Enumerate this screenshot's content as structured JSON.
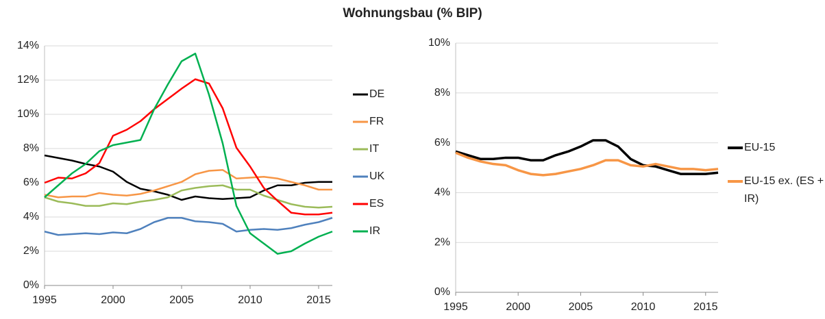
{
  "title": "Wohnungsbau (% BIP)",
  "chart_data": [
    {
      "type": "line",
      "x": [
        1995,
        1996,
        1997,
        1998,
        1999,
        2000,
        2001,
        2002,
        2003,
        2004,
        2005,
        2006,
        2007,
        2008,
        2009,
        2010,
        2011,
        2012,
        2013,
        2014,
        2015,
        2016
      ],
      "xlim": [
        1995,
        2016
      ],
      "xticks": [
        1995,
        2000,
        2005,
        2010,
        2015
      ],
      "ylim": [
        0,
        14
      ],
      "yticks": [
        {
          "value": 0,
          "label": "0%"
        },
        {
          "value": 2,
          "label": "2%"
        },
        {
          "value": 4,
          "label": "4%"
        },
        {
          "value": 6,
          "label": "6%"
        },
        {
          "value": 8,
          "label": "8%"
        },
        {
          "value": 10,
          "label": "10%"
        },
        {
          "value": 12,
          "label": "12%"
        },
        {
          "value": 14,
          "label": "14%"
        }
      ],
      "grid": true,
      "legend": "right",
      "series": [
        {
          "name": "DE",
          "color": "#000000",
          "values": [
            7.6,
            7.45,
            7.3,
            7.1,
            6.95,
            6.65,
            6.05,
            5.65,
            5.5,
            5.3,
            5.0,
            5.2,
            5.1,
            5.05,
            5.1,
            5.15,
            5.55,
            5.85,
            5.85,
            6.0,
            6.05,
            6.05
          ]
        },
        {
          "name": "FR",
          "color": "#f79646",
          "values": [
            5.3,
            5.15,
            5.2,
            5.2,
            5.4,
            5.3,
            5.25,
            5.35,
            5.55,
            5.8,
            6.05,
            6.5,
            6.7,
            6.75,
            6.25,
            6.3,
            6.35,
            6.25,
            6.05,
            5.85,
            5.6,
            5.6
          ]
        },
        {
          "name": "IT",
          "color": "#9bbb59",
          "values": [
            5.15,
            4.9,
            4.8,
            4.65,
            4.65,
            4.8,
            4.75,
            4.9,
            5.0,
            5.15,
            5.55,
            5.7,
            5.8,
            5.85,
            5.6,
            5.6,
            5.25,
            5.0,
            4.75,
            4.6,
            4.55,
            4.6
          ]
        },
        {
          "name": "UK",
          "color": "#4f81bd",
          "values": [
            3.15,
            2.95,
            3.0,
            3.05,
            3.0,
            3.1,
            3.05,
            3.3,
            3.7,
            3.95,
            3.95,
            3.75,
            3.7,
            3.6,
            3.15,
            3.25,
            3.3,
            3.25,
            3.35,
            3.55,
            3.7,
            3.95
          ]
        },
        {
          "name": "ES",
          "color": "#ff0000",
          "values": [
            6.0,
            6.3,
            6.25,
            6.55,
            7.15,
            8.75,
            9.1,
            9.6,
            10.3,
            10.9,
            11.5,
            12.05,
            11.8,
            10.35,
            8.05,
            6.95,
            5.7,
            4.95,
            4.25,
            4.15,
            4.15,
            4.25
          ]
        },
        {
          "name": "IR",
          "color": "#00b050",
          "values": [
            5.15,
            5.85,
            6.55,
            7.1,
            7.85,
            8.2,
            8.35,
            8.5,
            10.3,
            11.75,
            13.1,
            13.55,
            11.15,
            8.3,
            4.65,
            3.05,
            2.45,
            1.85,
            2.0,
            2.45,
            2.85,
            3.15
          ]
        }
      ]
    },
    {
      "type": "line",
      "x": [
        1995,
        1996,
        1997,
        1998,
        1999,
        2000,
        2001,
        2002,
        2003,
        2004,
        2005,
        2006,
        2007,
        2008,
        2009,
        2010,
        2011,
        2012,
        2013,
        2014,
        2015,
        2016
      ],
      "xlim": [
        1995,
        2016
      ],
      "xticks": [
        1995,
        2000,
        2005,
        2010,
        2015
      ],
      "ylim": [
        0,
        10
      ],
      "yticks": [
        {
          "value": 0,
          "label": "0%"
        },
        {
          "value": 2,
          "label": "2%"
        },
        {
          "value": 4,
          "label": "4%"
        },
        {
          "value": 6,
          "label": "6%"
        },
        {
          "value": 8,
          "label": "8%"
        },
        {
          "value": 10,
          "label": "10%"
        }
      ],
      "grid": true,
      "legend": "right",
      "series": [
        {
          "name": "EU-15",
          "color": "#000000",
          "values": [
            5.65,
            5.5,
            5.35,
            5.35,
            5.4,
            5.4,
            5.3,
            5.3,
            5.5,
            5.65,
            5.85,
            6.1,
            6.1,
            5.85,
            5.35,
            5.1,
            5.05,
            4.9,
            4.75,
            4.75,
            4.75,
            4.8
          ]
        },
        {
          "name": "EU-15 ex. (ES + IR)",
          "color": "#f79646",
          "values": [
            5.6,
            5.4,
            5.25,
            5.15,
            5.1,
            4.9,
            4.75,
            4.7,
            4.75,
            4.85,
            4.95,
            5.1,
            5.3,
            5.3,
            5.1,
            5.05,
            5.15,
            5.05,
            4.95,
            4.95,
            4.9,
            4.95
          ]
        }
      ]
    }
  ]
}
